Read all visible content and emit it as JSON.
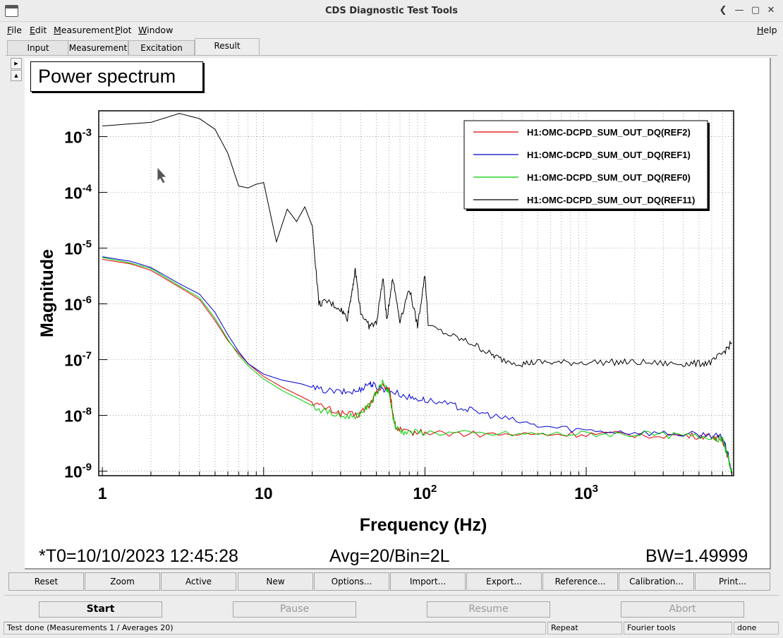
{
  "window": {
    "title": "CDS Diagnostic Test Tools",
    "controls": [
      "❮",
      "—",
      "▢",
      "✕"
    ]
  },
  "menu": {
    "left": [
      {
        "u": "F",
        "rest": "ile"
      },
      {
        "u": "E",
        "rest": "dit"
      },
      {
        "u": "M",
        "rest": "easurement"
      },
      {
        "u": "P",
        "rest": "lot"
      },
      {
        "u": "W",
        "rest": "indow"
      }
    ],
    "help": {
      "u": "H",
      "rest": "elp"
    }
  },
  "tabs": [
    "Input",
    "Measurement",
    "Excitation",
    "Result"
  ],
  "active_tab": "Result",
  "plot": {
    "title": "Power spectrum",
    "info": {
      "t0": "*T0=10/10/2023 12:45:28",
      "avg": "Avg=20/Bin=2L",
      "bw": "BW=1.49999"
    }
  },
  "chart_data": {
    "type": "line",
    "xlabel": "Frequency (Hz)",
    "ylabel": "Magnitude",
    "xscale": "log",
    "yscale": "log",
    "xlim": [
      0.95,
      8200
    ],
    "ylim": [
      8.3e-10,
      0.0029
    ],
    "x_ticks": [
      "1",
      "10",
      "10^2",
      "10^3"
    ],
    "y_ticks": [
      "10^-3",
      "10^-4",
      "10^-5",
      "10^-6",
      "10^-7",
      "10^-8",
      "10^-9"
    ],
    "grid": true,
    "legend_position": "top-right",
    "series": [
      {
        "name": "H1:OMC-DCPD_SUM_OUT_DQ(REF2)",
        "color": "#e00000",
        "points": [
          [
            1,
            6.3e-06
          ],
          [
            1.5,
            5.2e-06
          ],
          [
            2,
            4e-06
          ],
          [
            3,
            2e-06
          ],
          [
            4,
            1.2e-06
          ],
          [
            5,
            5e-07
          ],
          [
            6,
            2.2e-07
          ],
          [
            7,
            1.3e-07
          ],
          [
            8,
            8.5e-08
          ],
          [
            10,
            5e-08
          ],
          [
            13,
            3.2e-08
          ],
          [
            17,
            2.2e-08
          ],
          [
            22,
            1.5e-08
          ],
          [
            30,
            1.1e-08
          ],
          [
            38,
            1e-08
          ],
          [
            45,
            1.5e-08
          ],
          [
            50,
            2.5e-08
          ],
          [
            55,
            3.5e-08
          ],
          [
            60,
            3e-08
          ],
          [
            63,
            1.2e-08
          ],
          [
            66,
            6e-09
          ],
          [
            75,
            5e-09
          ],
          [
            100,
            5e-09
          ],
          [
            200,
            4.6e-09
          ],
          [
            500,
            4.5e-09
          ],
          [
            1000,
            4.6e-09
          ],
          [
            2000,
            4.5e-09
          ],
          [
            4000,
            4.3e-09
          ],
          [
            6000,
            4.2e-09
          ],
          [
            7000,
            3.6e-09
          ],
          [
            7500,
            2e-09
          ],
          [
            8000,
            9e-10
          ]
        ]
      },
      {
        "name": "H1:OMC-DCPD_SUM_OUT_DQ(REF1)",
        "color": "#0000d0",
        "points": [
          [
            1,
            7e-06
          ],
          [
            1.5,
            5.8e-06
          ],
          [
            2,
            4.5e-06
          ],
          [
            3,
            2.3e-06
          ],
          [
            4,
            1.5e-06
          ],
          [
            5,
            7e-07
          ],
          [
            6,
            2.8e-07
          ],
          [
            7,
            1.4e-07
          ],
          [
            8,
            8.5e-08
          ],
          [
            10,
            5.5e-08
          ],
          [
            13,
            4.3e-08
          ],
          [
            17,
            3.7e-08
          ],
          [
            22,
            2.9e-08
          ],
          [
            30,
            2.6e-08
          ],
          [
            38,
            2.7e-08
          ],
          [
            45,
            3.8e-08
          ],
          [
            50,
            3.3e-08
          ],
          [
            60,
            2.8e-08
          ],
          [
            80,
            2.1e-08
          ],
          [
            100,
            1.9e-08
          ],
          [
            150,
            1.5e-08
          ],
          [
            200,
            1.2e-08
          ],
          [
            300,
            9e-09
          ],
          [
            500,
            6.5e-09
          ],
          [
            1000,
            5.4e-09
          ],
          [
            2000,
            5e-09
          ],
          [
            4000,
            4.6e-09
          ],
          [
            6000,
            4.4e-09
          ],
          [
            7000,
            4e-09
          ],
          [
            7500,
            2.2e-09
          ],
          [
            8000,
            9e-10
          ]
        ]
      },
      {
        "name": "H1:OMC-DCPD_SUM_OUT_DQ(REF0)",
        "color": "#00cc00",
        "points": [
          [
            1,
            6.8e-06
          ],
          [
            1.5,
            5.4e-06
          ],
          [
            2,
            4.3e-06
          ],
          [
            3,
            2.1e-06
          ],
          [
            4,
            1.3e-06
          ],
          [
            5,
            5.5e-07
          ],
          [
            6,
            2.3e-07
          ],
          [
            7,
            1.2e-07
          ],
          [
            8,
            7.8e-08
          ],
          [
            10,
            4.5e-08
          ],
          [
            13,
            2.8e-08
          ],
          [
            17,
            1.9e-08
          ],
          [
            22,
            1.3e-08
          ],
          [
            30,
            9.5e-09
          ],
          [
            38,
            1e-08
          ],
          [
            45,
            1.5e-08
          ],
          [
            50,
            2.5e-08
          ],
          [
            55,
            4e-08
          ],
          [
            60,
            2.5e-08
          ],
          [
            63,
            1e-08
          ],
          [
            66,
            6e-09
          ],
          [
            75,
            5e-09
          ],
          [
            100,
            5e-09
          ],
          [
            200,
            4.7e-09
          ],
          [
            500,
            4.6e-09
          ],
          [
            1000,
            4.7e-09
          ],
          [
            2000,
            4.6e-09
          ],
          [
            4000,
            4.3e-09
          ],
          [
            6000,
            4.2e-09
          ],
          [
            7000,
            3.6e-09
          ],
          [
            7500,
            2e-09
          ],
          [
            8000,
            9e-10
          ]
        ]
      },
      {
        "name": "H1:OMC-DCPD_SUM_OUT_DQ(REF11)",
        "color": "#000000",
        "points": [
          [
            1,
            0.00155
          ],
          [
            2,
            0.0018
          ],
          [
            3,
            0.0026
          ],
          [
            4,
            0.0021
          ],
          [
            5,
            0.00135
          ],
          [
            6,
            0.0005
          ],
          [
            7,
            0.00013
          ],
          [
            8,
            0.00012
          ],
          [
            9,
            0.00014
          ],
          [
            10,
            0.00015
          ],
          [
            12,
            1.3e-05
          ],
          [
            14,
            5e-05
          ],
          [
            16,
            3e-05
          ],
          [
            18,
            5.5e-05
          ],
          [
            20,
            2.5e-05
          ],
          [
            22,
            1e-06
          ],
          [
            25,
            1.1e-06
          ],
          [
            30,
            8e-07
          ],
          [
            33,
            5.5e-07
          ],
          [
            35,
            1.5e-06
          ],
          [
            37,
            4e-06
          ],
          [
            40,
            7e-07
          ],
          [
            45,
            4e-07
          ],
          [
            50,
            4.5e-07
          ],
          [
            55,
            3e-06
          ],
          [
            58,
            5e-07
          ],
          [
            63,
            3e-06
          ],
          [
            70,
            5e-07
          ],
          [
            80,
            1.9e-06
          ],
          [
            90,
            4e-07
          ],
          [
            100,
            3.4e-06
          ],
          [
            105,
            4e-07
          ],
          [
            150,
            2.6e-07
          ],
          [
            200,
            1.9e-07
          ],
          [
            250,
            1.3e-07
          ],
          [
            300,
            1e-07
          ],
          [
            400,
            8.5e-08
          ],
          [
            500,
            9e-08
          ],
          [
            700,
            8.8e-08
          ],
          [
            1000,
            9e-08
          ],
          [
            1500,
            9e-08
          ],
          [
            2000,
            9e-08
          ],
          [
            3000,
            8.5e-08
          ],
          [
            4000,
            8.5e-08
          ],
          [
            5000,
            8.5e-08
          ],
          [
            6000,
            9e-08
          ],
          [
            7000,
            1.3e-07
          ],
          [
            8000,
            2e-07
          ]
        ]
      }
    ]
  },
  "buttons": [
    "Reset",
    "Zoom",
    "Active",
    "New",
    "Options...",
    "Import...",
    "Export...",
    "Reference...",
    "Calibration...",
    "Print..."
  ],
  "actions": {
    "start": "Start",
    "pause": "Pause",
    "resume": "Resume",
    "abort": "Abort"
  },
  "status": {
    "message": "Test done (Measurements 1 / Averages 20)",
    "mode": "Repeat",
    "tool": "Fourier tools",
    "state": "done"
  },
  "colors": {
    "background": "#ededed",
    "plot_background": "#ffffff"
  }
}
